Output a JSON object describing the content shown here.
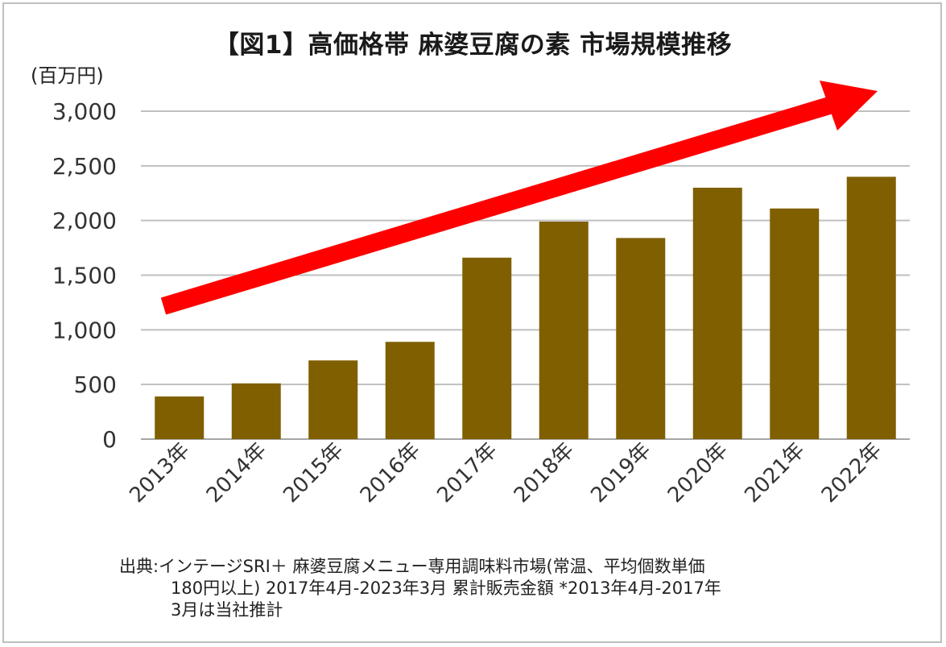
{
  "title": "【図1】高価格帯 麻婆豆腐の素 市場規模推移",
  "unit_label": "(百万円)",
  "source": {
    "line1": "出典:インテージSRI＋ 麻婆豆腐メニュー専用調味料市場(常温、平均個数単価",
    "line2": "180円以上) 2017年4月-2023年3月 累計販売金額 *2013年4月-2017年",
    "line3": "3月は当社推計"
  },
  "colors": {
    "bar": "#7f5f00",
    "arrow": "#ff0000",
    "grid": "#bfbfbf"
  },
  "chart_data": {
    "type": "bar",
    "categories": [
      "2013年",
      "2014年",
      "2015年",
      "2016年",
      "2017年",
      "2018年",
      "2019年",
      "2020年",
      "2021年",
      "2022年"
    ],
    "values": [
      390,
      510,
      720,
      890,
      1660,
      1990,
      1840,
      2300,
      2110,
      2400
    ],
    "yticks": [
      "0",
      "500",
      "1,000",
      "1,500",
      "2,000",
      "2,500",
      "3,000"
    ],
    "ylim": [
      0,
      3000
    ],
    "ytick_step": 500,
    "grid": true,
    "legend": "none",
    "annotation": "upward trend arrow"
  }
}
